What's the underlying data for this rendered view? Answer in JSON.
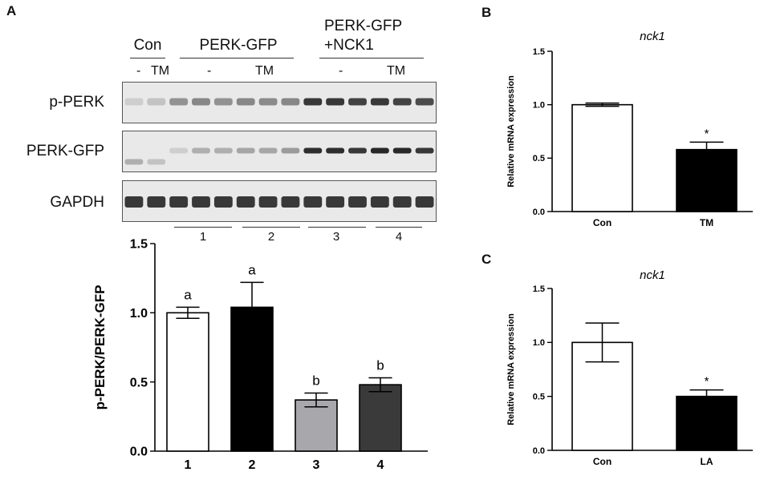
{
  "panels": {
    "A": "A",
    "B": "B",
    "C": "C"
  },
  "blot": {
    "groups": [
      "Con",
      "PERK-GFP",
      "PERK-GFP",
      "+NCK1"
    ],
    "treatments": [
      "-",
      "TM",
      "-",
      "TM",
      "-",
      "TM"
    ],
    "rows": [
      "p-PERK",
      "PERK-GFP",
      "GAPDH"
    ],
    "lane_numbers": [
      "1",
      "2",
      "3",
      "4"
    ],
    "intensity": {
      "p-PERK": [
        0.15,
        0.2,
        0.45,
        0.5,
        0.45,
        0.5,
        0.48,
        0.5,
        0.9,
        0.9,
        0.85,
        0.9,
        0.85,
        0.8
      ],
      "PERK-GFP": [
        0.3,
        0.2,
        0.15,
        0.3,
        0.3,
        0.35,
        0.35,
        0.4,
        0.95,
        0.95,
        0.9,
        0.98,
        0.98,
        0.9
      ],
      "GAPDH": [
        0.9,
        0.9,
        0.9,
        0.9,
        0.9,
        0.9,
        0.9,
        0.9,
        0.9,
        0.9,
        0.9,
        0.9,
        0.9,
        0.9
      ]
    }
  },
  "chart_data": [
    {
      "type": "bar",
      "ylabel": "p-PERK/PERK-GFP",
      "ylim": [
        0,
        1.5
      ],
      "yticks": [
        "0.0",
        "0.5",
        "1.0",
        "1.5"
      ],
      "categories": [
        "1",
        "2",
        "3",
        "4"
      ],
      "values": [
        1.0,
        1.04,
        0.37,
        0.48
      ],
      "errors": [
        0.04,
        0.18,
        0.05,
        0.05
      ],
      "letters": [
        "a",
        "a",
        "b",
        "b"
      ],
      "colors": [
        "#ffffff",
        "#000000",
        "#a8a8ac",
        "#3a3a3a"
      ]
    },
    {
      "type": "bar",
      "title": "nck1",
      "ylabel": "Relative mRNA expression",
      "ylim": [
        0,
        1.5
      ],
      "yticks": [
        "0.0",
        "0.5",
        "1.0",
        "1.5"
      ],
      "categories": [
        "Con",
        "TM"
      ],
      "values": [
        1.0,
        0.58
      ],
      "errors": [
        0.015,
        0.07
      ],
      "annotations": [
        "",
        "*"
      ],
      "colors": [
        "#ffffff",
        "#000000"
      ]
    },
    {
      "type": "bar",
      "title": "nck1",
      "ylabel": "Relative mRNA expression",
      "ylim": [
        0,
        1.5
      ],
      "yticks": [
        "0.0",
        "0.5",
        "1.0",
        "1.5"
      ],
      "categories": [
        "Con",
        "LA"
      ],
      "values": [
        1.0,
        0.5
      ],
      "errors": [
        0.18,
        0.06
      ],
      "annotations": [
        "",
        "*"
      ],
      "colors": [
        "#ffffff",
        "#000000"
      ]
    }
  ]
}
